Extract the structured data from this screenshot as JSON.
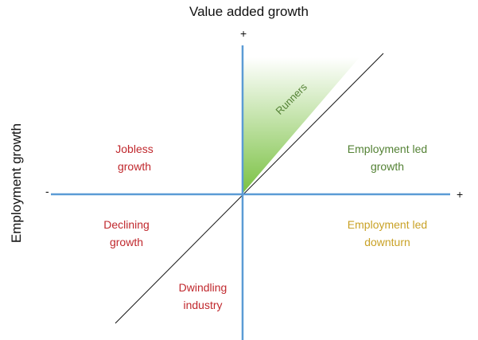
{
  "x_axis_title": "Value added growth",
  "y_axis_title": "Employment growth",
  "signs": {
    "top": "+",
    "right": "+",
    "left": "-"
  },
  "regions": {
    "runners": "Runners",
    "jobless_growth": [
      "Jobless",
      "growth"
    ],
    "employment_led_growth": [
      "Employment led",
      "growth"
    ],
    "declining_growth": [
      "Declining",
      "growth"
    ],
    "employment_led_downturn": [
      "Employment led",
      "downturn"
    ],
    "dwindling_industry": [
      "Dwindling",
      "industry"
    ]
  },
  "colors": {
    "axis": "#5b9bd5",
    "diagonal": "#111111",
    "runners_fill": "#7ac142",
    "red_text": "#c0282d",
    "green_text": "#548235",
    "orange_text": "#c9a227"
  }
}
